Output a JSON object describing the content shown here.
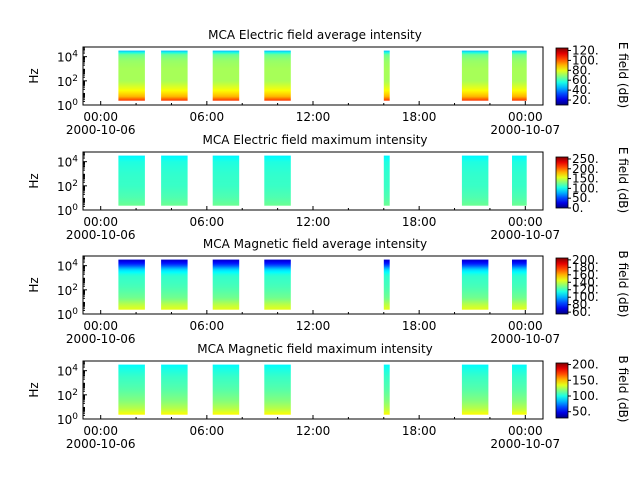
{
  "chart_data": [
    {
      "type": "heatmap",
      "title": "MCA  Electric field average intensity",
      "ylabel": "Hz",
      "colorbar_label": "E field (dB)",
      "colorbar_ticks": [
        "20.",
        "40.",
        "60.",
        "80.",
        "100.",
        "120."
      ],
      "colorbar_range": [
        10,
        125
      ],
      "yticks": [
        "10^0",
        "10^2",
        "10^4"
      ],
      "ylim_log10": [
        0,
        4.8
      ],
      "x_ticks": [
        {
          "hour": 0,
          "label": "00:00",
          "date": "2000-10-06"
        },
        {
          "hour": 6,
          "label": "06:00",
          "date": ""
        },
        {
          "hour": 12,
          "label": "12:00",
          "date": ""
        },
        {
          "hour": 18,
          "label": "18:00",
          "date": ""
        },
        {
          "hour": 24,
          "label": "00:00",
          "date": "2000-10-07"
        }
      ],
      "xlim_hours": [
        -1,
        25
      ],
      "freq_profile_db": [
        [
          0.35,
          105
        ],
        [
          0.7,
          90
        ],
        [
          1.3,
          80
        ],
        [
          2,
          72
        ],
        [
          3,
          72
        ],
        [
          3.7,
          70
        ],
        [
          4.2,
          65
        ],
        [
          4.5,
          45
        ]
      ],
      "passes": [
        {
          "start": "01:00",
          "end": "02:30"
        },
        {
          "start": "03:25",
          "end": "04:55"
        },
        {
          "start": "06:20",
          "end": "07:50"
        },
        {
          "start": "09:15",
          "end": "10:45"
        },
        {
          "start": "16:00",
          "end": "16:20"
        },
        {
          "start": "20:25",
          "end": "21:55"
        },
        {
          "start": "23:15",
          "end": "24:05"
        }
      ]
    },
    {
      "type": "heatmap",
      "title": "MCA  Electric field maximum intensity",
      "ylabel": "Hz",
      "colorbar_label": "E field (dB)",
      "colorbar_ticks": [
        "0.",
        "50.",
        "100.",
        "150.",
        "200.",
        "250."
      ],
      "colorbar_range": [
        0,
        260
      ],
      "yticks": [
        "10^0",
        "10^2",
        "10^4"
      ],
      "ylim_log10": [
        0,
        4.8
      ],
      "x_ticks": [
        {
          "hour": 0,
          "label": "00:00",
          "date": "2000-10-06"
        },
        {
          "hour": 6,
          "label": "06:00",
          "date": ""
        },
        {
          "hour": 12,
          "label": "12:00",
          "date": ""
        },
        {
          "hour": 18,
          "label": "18:00",
          "date": ""
        },
        {
          "hour": 24,
          "label": "00:00",
          "date": "2000-10-07"
        }
      ],
      "xlim_hours": [
        -1,
        25
      ],
      "freq_profile_db": [
        [
          0.35,
          125
        ],
        [
          1,
          118
        ],
        [
          2,
          112
        ],
        [
          3,
          110
        ],
        [
          4,
          105
        ],
        [
          4.5,
          95
        ]
      ],
      "passes": [
        {
          "start": "01:00",
          "end": "02:30"
        },
        {
          "start": "03:25",
          "end": "04:55"
        },
        {
          "start": "06:20",
          "end": "07:50"
        },
        {
          "start": "09:15",
          "end": "10:45"
        },
        {
          "start": "16:00",
          "end": "16:20"
        },
        {
          "start": "20:25",
          "end": "21:55"
        },
        {
          "start": "23:15",
          "end": "24:05"
        }
      ]
    },
    {
      "type": "heatmap",
      "title": "MCA  Magnetic field average intensity",
      "ylabel": "Hz",
      "colorbar_label": "B field (dB)",
      "colorbar_ticks": [
        "60.",
        "80.",
        "100.",
        "120.",
        "140.",
        "160.",
        "180.",
        "200."
      ],
      "colorbar_range": [
        55,
        205
      ],
      "yticks": [
        "10^0",
        "10^2",
        "10^4"
      ],
      "ylim_log10": [
        0,
        4.8
      ],
      "x_ticks": [
        {
          "hour": 0,
          "label": "00:00",
          "date": "2000-10-06"
        },
        {
          "hour": 6,
          "label": "06:00",
          "date": ""
        },
        {
          "hour": 12,
          "label": "12:00",
          "date": ""
        },
        {
          "hour": 18,
          "label": "18:00",
          "date": ""
        },
        {
          "hour": 24,
          "label": "00:00",
          "date": "2000-10-07"
        }
      ],
      "xlim_hours": [
        -1,
        25
      ],
      "freq_profile_db": [
        [
          0.35,
          145
        ],
        [
          0.7,
          140
        ],
        [
          1.3,
          128
        ],
        [
          2.2,
          122
        ],
        [
          3.2,
          118
        ],
        [
          3.7,
          105
        ],
        [
          4.1,
          80
        ],
        [
          4.5,
          65
        ]
      ],
      "passes": [
        {
          "start": "01:00",
          "end": "02:30"
        },
        {
          "start": "03:25",
          "end": "04:55"
        },
        {
          "start": "06:20",
          "end": "07:50"
        },
        {
          "start": "09:15",
          "end": "10:45"
        },
        {
          "start": "16:00",
          "end": "16:20"
        },
        {
          "start": "20:25",
          "end": "21:55"
        },
        {
          "start": "23:15",
          "end": "24:05"
        }
      ]
    },
    {
      "type": "heatmap",
      "title": "MCA  Magnetic field maximum intensity",
      "ylabel": "Hz",
      "colorbar_label": "B field (dB)",
      "colorbar_ticks": [
        "50.",
        "100.",
        "150.",
        "200."
      ],
      "colorbar_range": [
        30,
        205
      ],
      "yticks": [
        "10^0",
        "10^2",
        "10^4"
      ],
      "ylim_log10": [
        0,
        4.8
      ],
      "x_ticks": [
        {
          "hour": 0,
          "label": "00:00",
          "date": "2000-10-06"
        },
        {
          "hour": 6,
          "label": "06:00",
          "date": ""
        },
        {
          "hour": 12,
          "label": "12:00",
          "date": ""
        },
        {
          "hour": 18,
          "label": "18:00",
          "date": ""
        },
        {
          "hour": 24,
          "label": "00:00",
          "date": "2000-10-07"
        }
      ],
      "xlim_hours": [
        -1,
        25
      ],
      "freq_profile_db": [
        [
          0.35,
          140
        ],
        [
          0.8,
          128
        ],
        [
          1.5,
          118
        ],
        [
          2.5,
          110
        ],
        [
          3.5,
          105
        ],
        [
          4.1,
          100
        ],
        [
          4.5,
          95
        ]
      ],
      "passes": [
        {
          "start": "01:00",
          "end": "02:30"
        },
        {
          "start": "03:25",
          "end": "04:55"
        },
        {
          "start": "06:20",
          "end": "07:50"
        },
        {
          "start": "09:15",
          "end": "10:45"
        },
        {
          "start": "16:00",
          "end": "16:20"
        },
        {
          "start": "20:25",
          "end": "21:55"
        },
        {
          "start": "23:15",
          "end": "24:05"
        }
      ]
    }
  ]
}
